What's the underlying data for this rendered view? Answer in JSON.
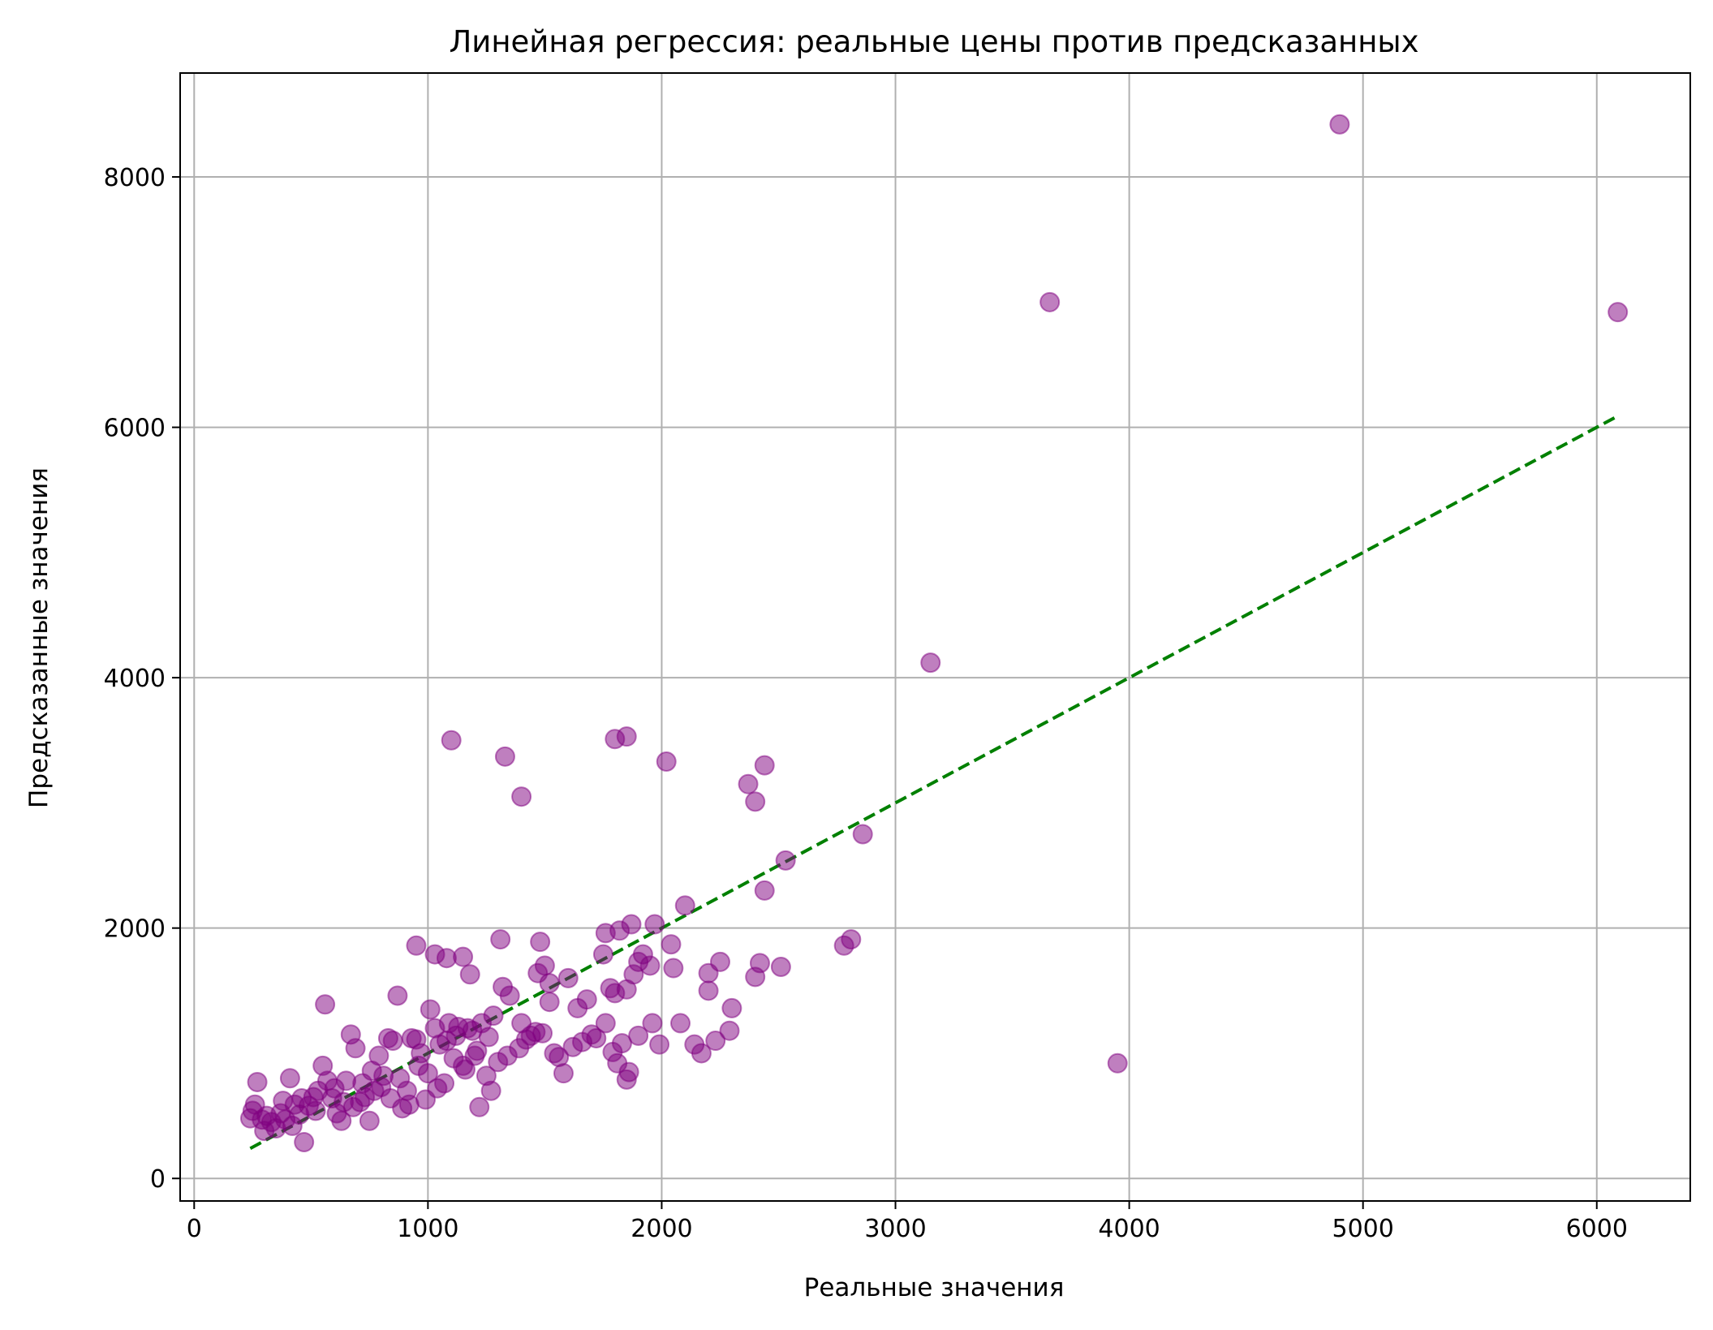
{
  "chart_data": {
    "type": "scatter",
    "title": "Линейная регрессия: реальные цены против предсказанных",
    "xlabel": "Реальные значения",
    "ylabel": "Предсказанные значения",
    "xlim": [
      -60,
      6400
    ],
    "ylim": [
      -180,
      8830
    ],
    "x_ticks": [
      0,
      1000,
      2000,
      3000,
      4000,
      5000,
      6000
    ],
    "x_tick_labels": [
      "0",
      "1000",
      "2000",
      "3000",
      "4000",
      "5000",
      "6000"
    ],
    "y_ticks": [
      0,
      2000,
      4000,
      6000,
      8000
    ],
    "y_tick_labels": [
      "0",
      "2000",
      "4000",
      "6000",
      "8000"
    ],
    "grid": true,
    "legend": "none",
    "colors": {
      "points": "#800080",
      "reference_line": "#008000",
      "grid": "#b0b0b0",
      "axes": "#000000"
    },
    "reference_line": {
      "style": "dashed",
      "x": [
        240,
        6080
      ],
      "y": [
        240,
        6080
      ]
    },
    "points": [
      [
        4900,
        8420
      ],
      [
        3660,
        7000
      ],
      [
        6090,
        6920
      ],
      [
        3150,
        4120
      ],
      [
        3950,
        920
      ],
      [
        1100,
        3500
      ],
      [
        1330,
        3370
      ],
      [
        1400,
        3050
      ],
      [
        1800,
        3510
      ],
      [
        1850,
        3530
      ],
      [
        2020,
        3330
      ],
      [
        2370,
        3150
      ],
      [
        2400,
        3010
      ],
      [
        2440,
        3300
      ],
      [
        2860,
        2750
      ],
      [
        2530,
        2540
      ],
      [
        2440,
        2300
      ],
      [
        2100,
        2180
      ],
      [
        2780,
        1860
      ],
      [
        2810,
        1910
      ],
      [
        1970,
        2030
      ],
      [
        1870,
        2030
      ],
      [
        1760,
        1960
      ],
      [
        1820,
        1980
      ],
      [
        1310,
        1910
      ],
      [
        1480,
        1890
      ],
      [
        950,
        1860
      ],
      [
        1030,
        1790
      ],
      [
        1080,
        1760
      ],
      [
        1150,
        1770
      ],
      [
        1180,
        1630
      ],
      [
        1470,
        1640
      ],
      [
        1500,
        1700
      ],
      [
        1600,
        1600
      ],
      [
        1750,
        1790
      ],
      [
        1800,
        1480
      ],
      [
        1850,
        1510
      ],
      [
        1880,
        1630
      ],
      [
        1900,
        1730
      ],
      [
        1950,
        1700
      ],
      [
        2040,
        1870
      ],
      [
        2050,
        1680
      ],
      [
        2200,
        1640
      ],
      [
        2250,
        1730
      ],
      [
        2420,
        1720
      ],
      [
        2400,
        1610
      ],
      [
        2510,
        1690
      ],
      [
        2200,
        1500
      ],
      [
        2300,
        1360
      ],
      [
        2290,
        1180
      ],
      [
        2230,
        1100
      ],
      [
        2140,
        1070
      ],
      [
        2170,
        1000
      ],
      [
        1990,
        1070
      ],
      [
        1960,
        1240
      ],
      [
        1900,
        1140
      ],
      [
        1860,
        850
      ],
      [
        1850,
        790
      ],
      [
        1810,
        920
      ],
      [
        1790,
        1010
      ],
      [
        1760,
        1240
      ],
      [
        1700,
        1150
      ],
      [
        1680,
        1430
      ],
      [
        1660,
        1090
      ],
      [
        1620,
        1050
      ],
      [
        1580,
        840
      ],
      [
        1560,
        970
      ],
      [
        1540,
        1000
      ],
      [
        1520,
        1410
      ],
      [
        1490,
        1160
      ],
      [
        1460,
        1170
      ],
      [
        1440,
        1140
      ],
      [
        1400,
        1240
      ],
      [
        1390,
        1040
      ],
      [
        1350,
        1460
      ],
      [
        1320,
        1530
      ],
      [
        1300,
        930
      ],
      [
        1280,
        1300
      ],
      [
        1270,
        700
      ],
      [
        1250,
        820
      ],
      [
        1230,
        1240
      ],
      [
        1210,
        1020
      ],
      [
        1190,
        1180
      ],
      [
        1170,
        1200
      ],
      [
        1150,
        900
      ],
      [
        1130,
        1210
      ],
      [
        1110,
        960
      ],
      [
        1090,
        1240
      ],
      [
        1070,
        760
      ],
      [
        1050,
        1070
      ],
      [
        1030,
        1200
      ],
      [
        1010,
        1350
      ],
      [
        990,
        630
      ],
      [
        970,
        1000
      ],
      [
        950,
        1110
      ],
      [
        930,
        1120
      ],
      [
        910,
        700
      ],
      [
        890,
        560
      ],
      [
        870,
        1460
      ],
      [
        850,
        1100
      ],
      [
        830,
        1120
      ],
      [
        810,
        820
      ],
      [
        790,
        980
      ],
      [
        770,
        700
      ],
      [
        750,
        460
      ],
      [
        730,
        650
      ],
      [
        710,
        610
      ],
      [
        690,
        1040
      ],
      [
        670,
        1150
      ],
      [
        650,
        780
      ],
      [
        630,
        460
      ],
      [
        610,
        520
      ],
      [
        590,
        640
      ],
      [
        570,
        780
      ],
      [
        550,
        900
      ],
      [
        560,
        1390
      ],
      [
        530,
        700
      ],
      [
        510,
        650
      ],
      [
        490,
        580
      ],
      [
        470,
        290
      ],
      [
        450,
        510
      ],
      [
        430,
        590
      ],
      [
        410,
        800
      ],
      [
        390,
        470
      ],
      [
        370,
        520
      ],
      [
        350,
        400
      ],
      [
        330,
        450
      ],
      [
        310,
        500
      ],
      [
        290,
        470
      ],
      [
        270,
        770
      ],
      [
        260,
        590
      ],
      [
        250,
        540
      ],
      [
        240,
        480
      ],
      [
        300,
        380
      ],
      [
        420,
        420
      ],
      [
        380,
        620
      ],
      [
        460,
        640
      ],
      [
        520,
        540
      ],
      [
        600,
        720
      ],
      [
        640,
        610
      ],
      [
        680,
        570
      ],
      [
        720,
        760
      ],
      [
        760,
        860
      ],
      [
        800,
        730
      ],
      [
        840,
        640
      ],
      [
        880,
        800
      ],
      [
        920,
        590
      ],
      [
        960,
        900
      ],
      [
        1000,
        840
      ],
      [
        1040,
        720
      ],
      [
        1080,
        1100
      ],
      [
        1120,
        1140
      ],
      [
        1160,
        870
      ],
      [
        1200,
        980
      ],
      [
        1220,
        570
      ],
      [
        1260,
        1130
      ],
      [
        1340,
        980
      ],
      [
        1420,
        1110
      ],
      [
        1520,
        1560
      ],
      [
        1640,
        1360
      ],
      [
        1720,
        1120
      ],
      [
        1780,
        1520
      ],
      [
        1830,
        1080
      ],
      [
        1920,
        1790
      ],
      [
        2080,
        1240
      ]
    ]
  }
}
